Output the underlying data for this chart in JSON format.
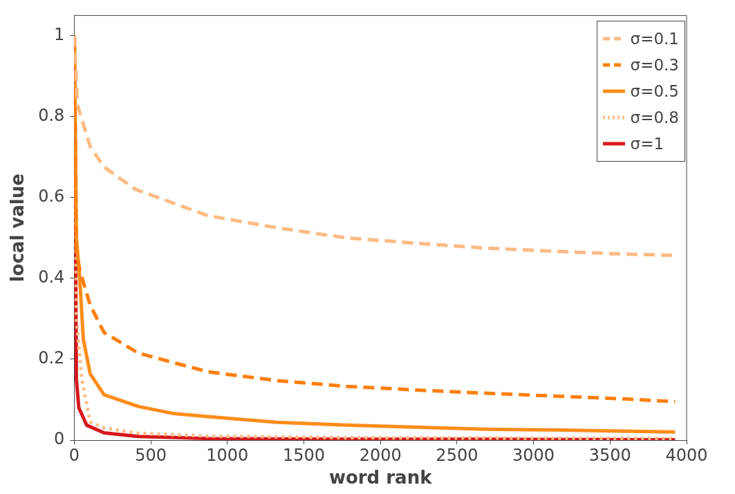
{
  "chart_data": {
    "type": "line",
    "xlabel": "word rank",
    "ylabel": "local value",
    "xlim": [
      0,
      4000
    ],
    "ylim": [
      0,
      1.05
    ],
    "xticks": [
      0,
      500,
      1000,
      1500,
      2000,
      2500,
      3000,
      3500,
      4000
    ],
    "yticks": [
      0,
      0.2,
      0.4,
      0.6,
      0.8,
      1
    ],
    "grid": false,
    "legend": "top right",
    "marker": "none",
    "series": [
      {
        "name": "σ=0.1",
        "color": "#fdbb84",
        "line_style": "dashed",
        "x": [
          1,
          20,
          104,
          195,
          400,
          873,
          1325,
          1777,
          2229,
          2681,
          3133,
          3584,
          3925
        ],
        "values": [
          1,
          0.83,
          0.726,
          0.675,
          0.62,
          0.555,
          0.525,
          0.5,
          0.487,
          0.475,
          0.467,
          0.46,
          0.457
        ]
      },
      {
        "name": "σ=0.3",
        "color": "#fd7f0e",
        "line_style": "dashed",
        "x": [
          1,
          10,
          14,
          36,
          104,
          195,
          420,
          873,
          1325,
          1777,
          2229,
          2681,
          3133,
          3584,
          3925
        ],
        "values": [
          1,
          0.6,
          0.47,
          0.42,
          0.334,
          0.266,
          0.215,
          0.169,
          0.147,
          0.133,
          0.124,
          0.116,
          0.109,
          0.102,
          0.095
        ]
      },
      {
        "name": "σ=0.5",
        "color": "#ff8c1a",
        "line_style": "solid",
        "x": [
          1,
          14,
          36,
          59,
          104,
          195,
          420,
          646,
          873,
          1325,
          1777,
          2229,
          2681,
          3133,
          3584,
          3925
        ],
        "values": [
          1,
          0.5,
          0.4,
          0.25,
          0.164,
          0.112,
          0.083,
          0.066,
          0.058,
          0.044,
          0.037,
          0.032,
          0.027,
          0.025,
          0.022,
          0.02
        ]
      },
      {
        "name": "σ=0.8",
        "color": "#fdbb84",
        "line_style": "dotted",
        "x": [
          1,
          14,
          50,
          104,
          195,
          420,
          873,
          1777,
          2681,
          3925
        ],
        "values": [
          1,
          0.3,
          0.15,
          0.045,
          0.03,
          0.017,
          0.01,
          0.006,
          0.005,
          0.004
        ]
      },
      {
        "name": "σ=1",
        "color": "#d7191c",
        "line_style": "solid",
        "x": [
          1,
          14,
          30,
          81,
          195,
          420,
          873,
          1777,
          2681,
          3925
        ],
        "values": [
          1,
          0.15,
          0.08,
          0.037,
          0.018,
          0.009,
          0.004,
          0.002,
          0.002,
          0.001
        ]
      }
    ]
  }
}
